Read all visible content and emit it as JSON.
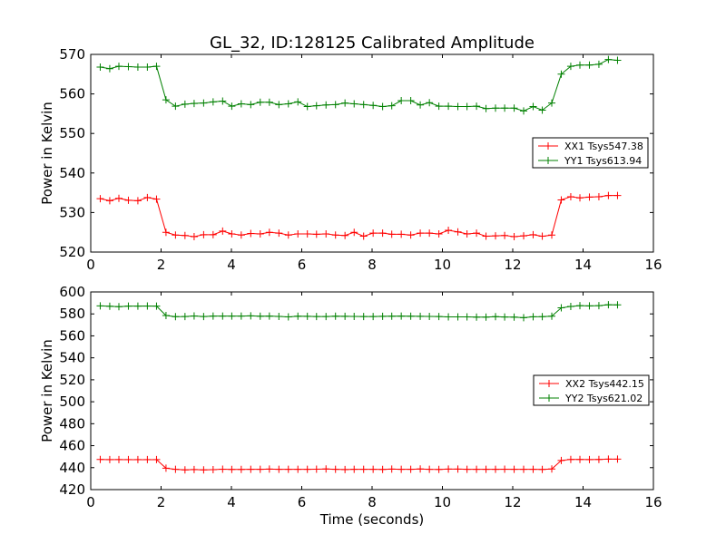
{
  "title": "GL_32, ID:128125 Calibrated Amplitude",
  "chart_data": [
    {
      "type": "line",
      "title": "GL_32, ID:128125 Calibrated Amplitude",
      "xlabel": "",
      "ylabel": "Power in Kelvin",
      "xlim": [
        0,
        16
      ],
      "ylim": [
        520,
        570
      ],
      "xticks": [
        0,
        2,
        4,
        6,
        8,
        10,
        12,
        14,
        16
      ],
      "yticks": [
        520,
        530,
        540,
        550,
        560,
        570
      ],
      "grid": false,
      "legend_position": "right",
      "series": [
        {
          "name": "XX1 Tsys547.38",
          "color": "#ff0000",
          "x": [
            0.27,
            0.54,
            0.8,
            1.07,
            1.34,
            1.61,
            1.87,
            2.14,
            2.41,
            2.68,
            2.94,
            3.21,
            3.48,
            3.75,
            4.01,
            4.28,
            4.55,
            4.82,
            5.08,
            5.35,
            5.62,
            5.89,
            6.16,
            6.42,
            6.69,
            6.96,
            7.23,
            7.49,
            7.76,
            8.03,
            8.3,
            8.56,
            8.83,
            9.1,
            9.37,
            9.63,
            9.9,
            10.17,
            10.44,
            10.7,
            10.97,
            11.24,
            11.51,
            11.77,
            12.04,
            12.31,
            12.58,
            12.84,
            13.11,
            13.38,
            13.65,
            13.91,
            14.18,
            14.45,
            14.72,
            14.98
          ],
          "values": [
            533.5,
            533.0,
            533.6,
            533.1,
            533.0,
            533.8,
            533.4,
            525.0,
            524.3,
            524.2,
            523.9,
            524.4,
            524.4,
            525.3,
            524.6,
            524.3,
            524.7,
            524.6,
            525.0,
            524.8,
            524.3,
            524.6,
            524.6,
            524.5,
            524.6,
            524.3,
            524.2,
            525.0,
            524.0,
            524.8,
            524.8,
            524.5,
            524.5,
            524.3,
            524.8,
            524.8,
            524.6,
            525.5,
            525.1,
            524.6,
            524.8,
            524.0,
            524.1,
            524.2,
            523.9,
            524.1,
            524.4,
            524.0,
            524.3,
            533.2,
            534.0,
            533.7,
            533.9,
            534.0,
            534.3,
            534.3
          ]
        },
        {
          "name": "YY1 Tsys613.94",
          "color": "#008000",
          "x": [
            0.27,
            0.54,
            0.8,
            1.07,
            1.34,
            1.61,
            1.87,
            2.14,
            2.41,
            2.68,
            2.94,
            3.21,
            3.48,
            3.75,
            4.01,
            4.28,
            4.55,
            4.82,
            5.08,
            5.35,
            5.62,
            5.89,
            6.16,
            6.42,
            6.69,
            6.96,
            7.23,
            7.49,
            7.76,
            8.03,
            8.3,
            8.56,
            8.83,
            9.1,
            9.37,
            9.63,
            9.9,
            10.17,
            10.44,
            10.7,
            10.97,
            11.24,
            11.51,
            11.77,
            12.04,
            12.31,
            12.58,
            12.84,
            13.11,
            13.38,
            13.65,
            13.91,
            14.18,
            14.45,
            14.72,
            14.98
          ],
          "values": [
            566.8,
            566.4,
            567.0,
            566.9,
            566.8,
            566.8,
            567.0,
            558.5,
            556.9,
            557.4,
            557.6,
            557.7,
            558.0,
            558.2,
            556.9,
            557.5,
            557.3,
            557.9,
            557.9,
            557.3,
            557.5,
            558.0,
            556.8,
            557.0,
            557.2,
            557.3,
            557.7,
            557.5,
            557.3,
            557.1,
            556.8,
            557.0,
            558.3,
            558.3,
            557.2,
            557.8,
            556.9,
            556.9,
            556.8,
            556.8,
            556.9,
            556.3,
            556.4,
            556.4,
            556.4,
            555.7,
            556.8,
            555.9,
            557.7,
            565.0,
            567.0,
            567.3,
            567.3,
            567.5,
            568.7,
            568.5
          ]
        }
      ]
    },
    {
      "type": "line",
      "title": "",
      "xlabel": "Time (seconds)",
      "ylabel": "Power in Kelvin",
      "xlim": [
        0,
        16
      ],
      "ylim": [
        420,
        600
      ],
      "xticks": [
        0,
        2,
        4,
        6,
        8,
        10,
        12,
        14,
        16
      ],
      "yticks": [
        420,
        440,
        460,
        480,
        500,
        520,
        540,
        560,
        580,
        600
      ],
      "grid": false,
      "legend_position": "right",
      "series": [
        {
          "name": "XX2 Tsys442.15",
          "color": "#ff0000",
          "x": [
            0.27,
            0.54,
            0.8,
            1.07,
            1.34,
            1.61,
            1.87,
            2.14,
            2.41,
            2.68,
            2.94,
            3.21,
            3.48,
            3.75,
            4.01,
            4.28,
            4.55,
            4.82,
            5.08,
            5.35,
            5.62,
            5.89,
            6.16,
            6.42,
            6.69,
            6.96,
            7.23,
            7.49,
            7.76,
            8.03,
            8.3,
            8.56,
            8.83,
            9.1,
            9.37,
            9.63,
            9.9,
            10.17,
            10.44,
            10.7,
            10.97,
            11.24,
            11.51,
            11.77,
            12.04,
            12.31,
            12.58,
            12.84,
            13.11,
            13.38,
            13.65,
            13.91,
            14.18,
            14.45,
            14.72,
            14.98
          ],
          "values": [
            447.5,
            447.3,
            447.4,
            447.3,
            447.3,
            447.3,
            447.3,
            439.5,
            438.5,
            438.0,
            438.3,
            438.0,
            438.2,
            438.6,
            438.4,
            438.4,
            438.5,
            438.5,
            438.7,
            438.5,
            438.5,
            438.5,
            438.5,
            438.6,
            438.8,
            438.5,
            438.3,
            438.5,
            438.5,
            438.5,
            438.4,
            438.7,
            438.5,
            438.5,
            438.8,
            438.5,
            438.4,
            438.7,
            438.7,
            438.5,
            438.5,
            438.5,
            438.5,
            438.6,
            438.5,
            438.5,
            438.5,
            438.4,
            438.8,
            446.5,
            447.5,
            447.5,
            447.4,
            447.5,
            447.8,
            447.8
          ]
        },
        {
          "name": "YY2 Tsys621.02",
          "color": "#008000",
          "x": [
            0.27,
            0.54,
            0.8,
            1.07,
            1.34,
            1.61,
            1.87,
            2.14,
            2.41,
            2.68,
            2.94,
            3.21,
            3.48,
            3.75,
            4.01,
            4.28,
            4.55,
            4.82,
            5.08,
            5.35,
            5.62,
            5.89,
            6.16,
            6.42,
            6.69,
            6.96,
            7.23,
            7.49,
            7.76,
            8.03,
            8.3,
            8.56,
            8.83,
            9.1,
            9.37,
            9.63,
            9.9,
            10.17,
            10.44,
            10.7,
            10.97,
            11.24,
            11.51,
            11.77,
            12.04,
            12.31,
            12.58,
            12.84,
            13.11,
            13.38,
            13.65,
            13.91,
            14.18,
            14.45,
            14.72,
            14.98
          ],
          "values": [
            587.3,
            587.0,
            586.6,
            587.1,
            587.1,
            587.2,
            587.1,
            578.5,
            577.5,
            577.6,
            578.1,
            577.6,
            578.0,
            578.0,
            578.0,
            578.0,
            578.2,
            577.9,
            578.0,
            577.7,
            577.3,
            577.9,
            577.8,
            577.6,
            577.6,
            577.9,
            577.8,
            577.7,
            577.6,
            577.6,
            577.8,
            577.9,
            578.0,
            577.9,
            577.8,
            577.7,
            577.6,
            577.3,
            577.3,
            577.3,
            577.1,
            577.1,
            577.5,
            577.2,
            577.1,
            576.6,
            577.4,
            577.5,
            577.9,
            585.5,
            586.8,
            587.5,
            587.3,
            587.5,
            588.3,
            588.2
          ]
        }
      ]
    }
  ]
}
